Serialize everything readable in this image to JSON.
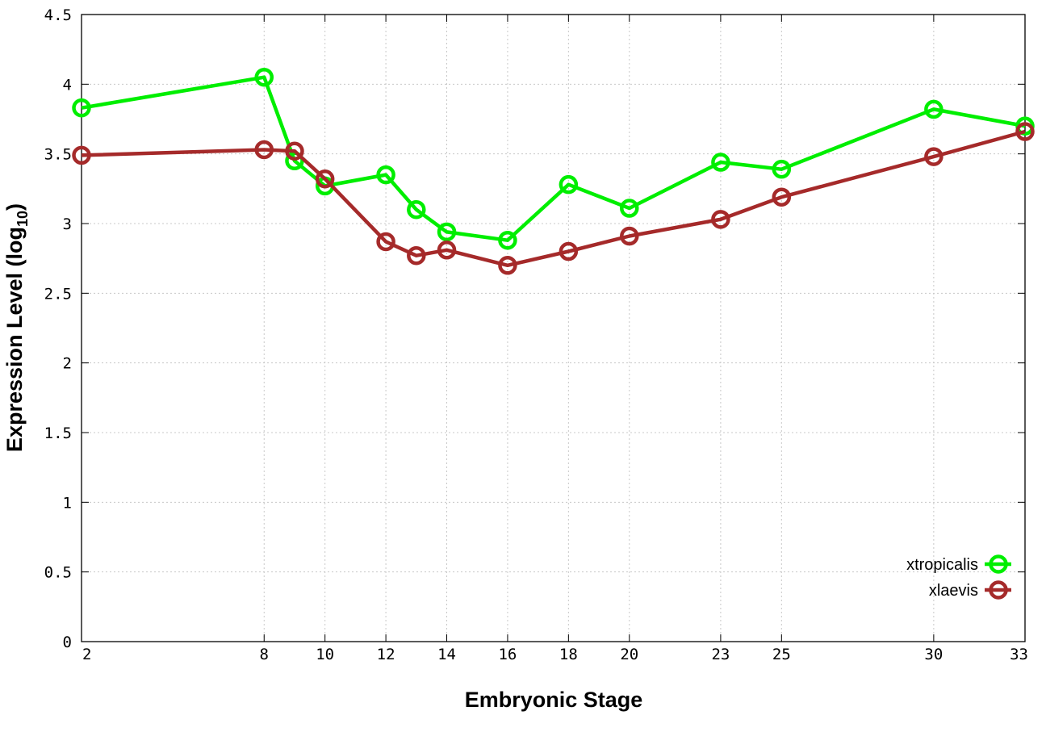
{
  "chart_data": {
    "type": "line",
    "xlabel": "Embryonic Stage",
    "ylabel_main": "Expression Level (log",
    "ylabel_sub": "10",
    "ylabel_close": ")",
    "xlim": [
      2,
      33
    ],
    "ylim": [
      0,
      4.5
    ],
    "x_ticks": [
      2,
      8,
      10,
      12,
      14,
      16,
      18,
      20,
      23,
      25,
      30,
      33
    ],
    "x_tick_labels": [
      "2",
      "8",
      "10",
      "12",
      "14",
      "16",
      "18",
      "20",
      "23",
      "25",
      "30",
      "33"
    ],
    "y_ticks": [
      0,
      0.5,
      1,
      1.5,
      2,
      2.5,
      3,
      3.5,
      4,
      4.5
    ],
    "y_tick_labels": [
      "0",
      "0.5",
      "1",
      "1.5",
      "2",
      "2.5",
      "3",
      "3.5",
      "4",
      "4.5"
    ],
    "grid": true,
    "legend_position": "bottom-right",
    "series": [
      {
        "name": "xtropicalis",
        "color": "#00ee00",
        "x": [
          2,
          8,
          9,
          10,
          12,
          13,
          14,
          16,
          18,
          20,
          23,
          25,
          30,
          33
        ],
        "y": [
          3.83,
          4.05,
          3.45,
          3.27,
          3.35,
          3.1,
          2.94,
          2.88,
          3.28,
          3.11,
          3.44,
          3.39,
          3.82,
          3.7
        ]
      },
      {
        "name": "xlaevis",
        "color": "#a52a2a",
        "x": [
          2,
          8,
          9,
          10,
          12,
          13,
          14,
          16,
          18,
          20,
          23,
          25,
          30,
          33
        ],
        "y": [
          3.49,
          3.53,
          3.52,
          3.32,
          2.87,
          2.77,
          2.81,
          2.7,
          2.8,
          2.91,
          3.03,
          3.19,
          3.48,
          3.66
        ]
      }
    ]
  }
}
